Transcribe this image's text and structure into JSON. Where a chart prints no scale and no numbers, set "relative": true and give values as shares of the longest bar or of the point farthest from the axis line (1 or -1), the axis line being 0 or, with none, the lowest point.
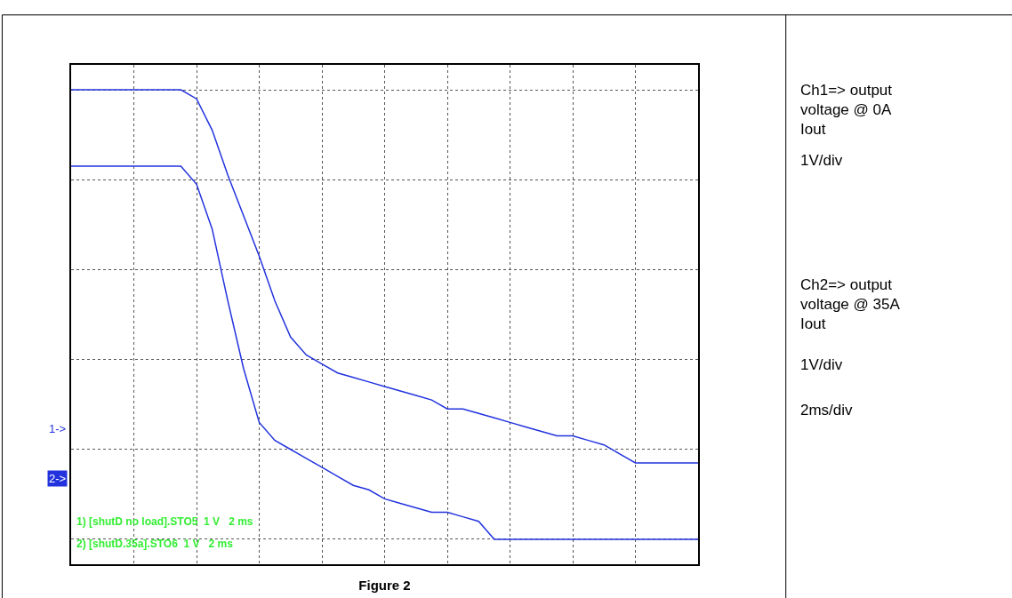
{
  "chart_data": {
    "type": "line",
    "relative": true,
    "grid": true,
    "line_style": "solid",
    "marker": "none",
    "categories": [
      null,
      null,
      null,
      null,
      null,
      null,
      null,
      null,
      null,
      null,
      null,
      null,
      null,
      null,
      null,
      null,
      null,
      null,
      null,
      null,
      null,
      null,
      null,
      null,
      null,
      null,
      null,
      null,
      null,
      null,
      null,
      null,
      null,
      null,
      null,
      null,
      null,
      null,
      null,
      null,
      null
    ],
    "series": [
      {
        "color": "#2233dd",
        "values": [
          1.0,
          1.0,
          1.0,
          1.0,
          1.0,
          1.0,
          1.0,
          1.0,
          0.98,
          0.91,
          0.81,
          0.72,
          0.63,
          0.53,
          0.45,
          0.41,
          0.39,
          0.37,
          0.36,
          0.35,
          0.34,
          0.33,
          0.32,
          0.31,
          0.29,
          0.29,
          0.28,
          0.27,
          0.26,
          0.25,
          0.24,
          0.23,
          0.23,
          0.22,
          0.21,
          0.19,
          0.17,
          0.17,
          0.17,
          0.17,
          0.17
        ]
      },
      {
        "color": "#2233dd",
        "values": [
          0.83,
          0.83,
          0.83,
          0.83,
          0.83,
          0.83,
          0.83,
          0.83,
          0.79,
          0.69,
          0.53,
          0.38,
          0.26,
          0.22,
          0.2,
          0.18,
          0.16,
          0.14,
          0.12,
          0.11,
          0.09,
          0.08,
          0.07,
          0.06,
          0.06,
          0.05,
          0.04,
          0,
          0,
          0,
          0,
          0,
          0,
          0,
          0,
          0,
          0,
          0,
          0,
          0,
          0
        ]
      }
    ],
    "xlabel": "Figure 2",
    "annotations": [
      "1) [shutD no load].STO5  1 V   2 ms",
      "2) [shutD.35a].STO6  1 V   2 ms",
      "1->",
      "2->",
      "Ch1=> output voltage @ 0A Iout",
      "1V/div",
      "Ch2=> output voltage @ 35A Iout",
      "1V/div",
      "2ms/div"
    ]
  }
}
